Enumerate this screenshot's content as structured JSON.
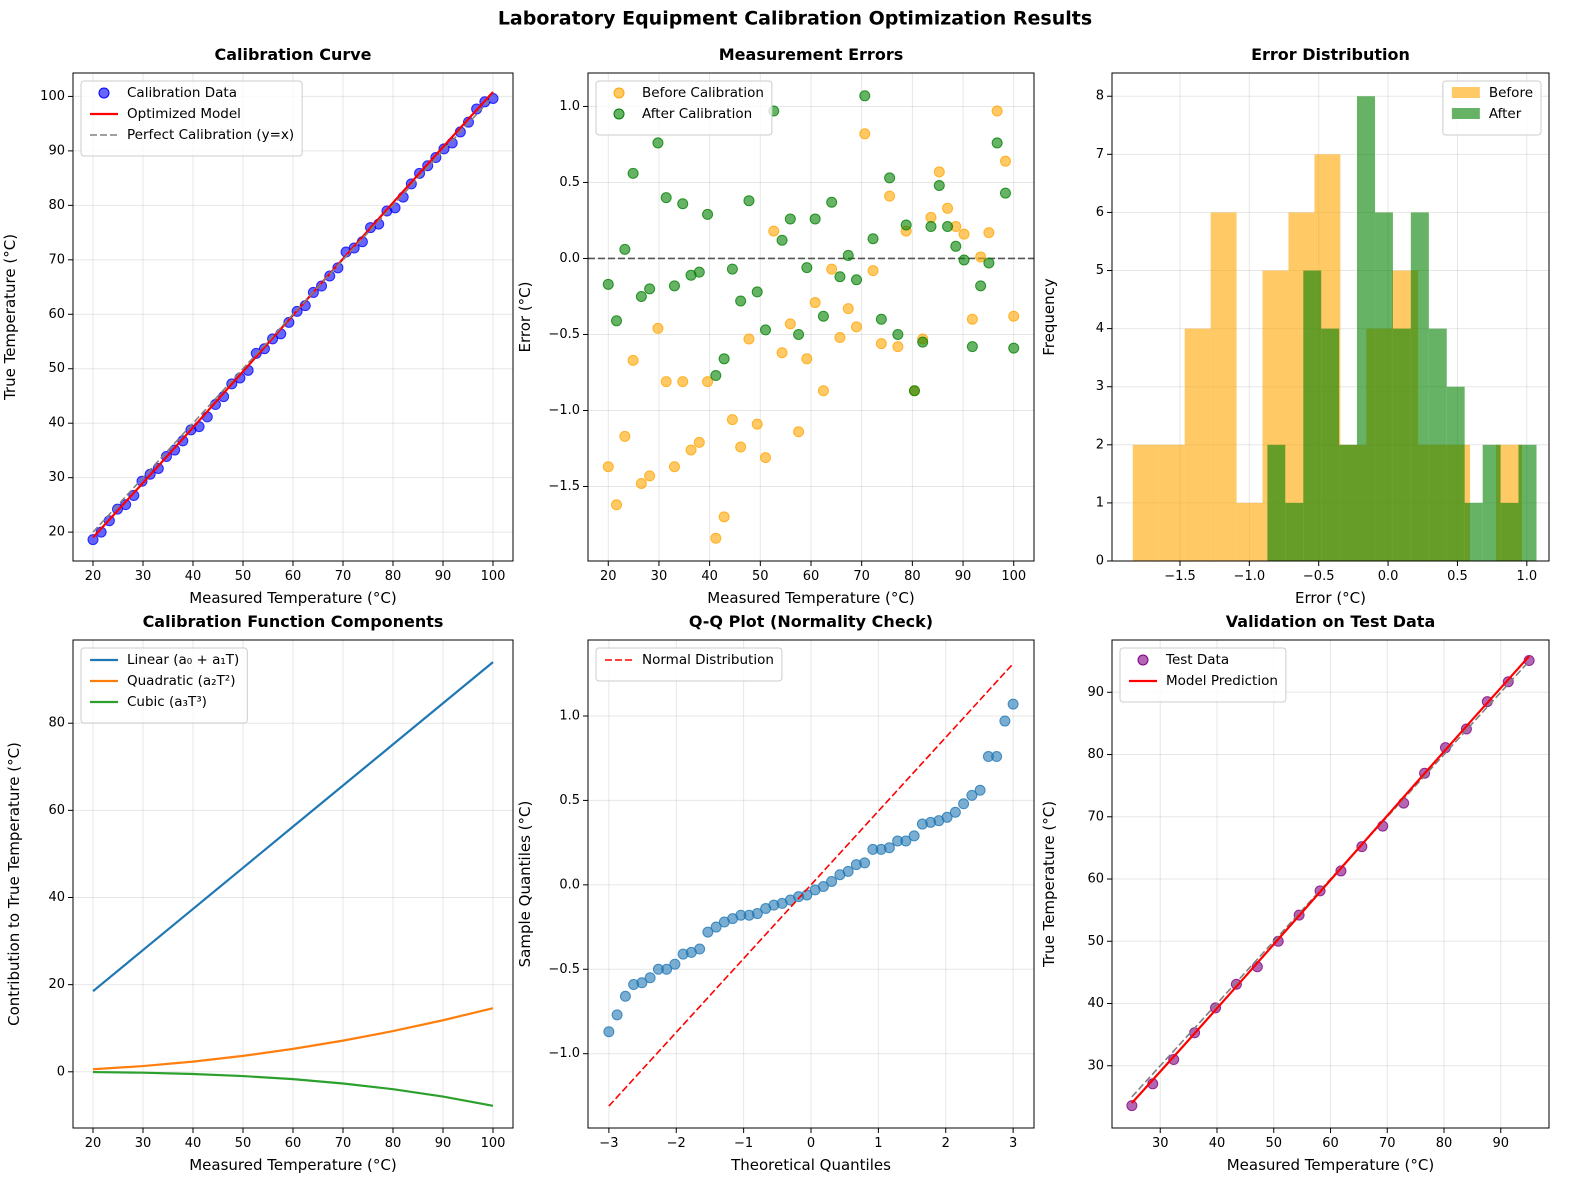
{
  "title": "Laboratory Equipment Calibration Optimization Results",
  "chart_data": [
    {
      "type": "scatter",
      "title": "Calibration Curve",
      "xlabel": "Measured Temperature (°C)",
      "ylabel": "True Temperature (°C)",
      "xlim": [
        16,
        104
      ],
      "ylim": [
        14.7,
        104.3
      ],
      "xticks": [
        20,
        30,
        40,
        50,
        60,
        70,
        80,
        90,
        100
      ],
      "yticks": [
        20,
        30,
        40,
        50,
        60,
        70,
        80,
        90,
        100
      ],
      "grid": true,
      "legend": "upper left",
      "series": [
        {
          "name": "Calibration Data",
          "type": "scatter",
          "color": "blue",
          "alpha": 0.6,
          "x": [
            20,
            21.63,
            23.27,
            24.9,
            26.53,
            28.16,
            29.8,
            31.43,
            33.06,
            34.69,
            36.33,
            37.96,
            39.59,
            41.22,
            42.86,
            44.49,
            46.12,
            47.76,
            49.39,
            51.02,
            52.65,
            54.29,
            55.92,
            57.55,
            59.18,
            60.82,
            62.45,
            64.08,
            65.71,
            67.35,
            68.98,
            70.61,
            72.24,
            73.88,
            75.51,
            77.14,
            78.78,
            80.41,
            82.04,
            83.67,
            85.31,
            86.94,
            88.57,
            90.2,
            91.84,
            93.47,
            95.1,
            96.73,
            98.37,
            100
          ],
          "values": [
            18.63,
            20.01,
            22.1,
            24.23,
            25.05,
            26.73,
            29.34,
            30.62,
            31.69,
            33.88,
            35.07,
            36.75,
            38.78,
            39.38,
            41.16,
            43.43,
            44.88,
            47.23,
            48.3,
            49.71,
            52.83,
            53.67,
            55.49,
            56.41,
            58.52,
            60.53,
            61.58,
            64.01,
            65.19,
            67.02,
            68.53,
            71.43,
            72.16,
            73.32,
            75.92,
            76.56,
            78.96,
            79.54,
            81.51,
            83.94,
            85.88,
            87.27,
            88.78,
            90.36,
            91.44,
            93.48,
            95.27,
            97.7,
            99.01,
            99.62
          ]
        },
        {
          "name": "Optimized Model",
          "type": "line",
          "color": "red",
          "x": [
            20,
            30,
            40,
            50,
            60,
            70,
            80,
            90,
            100
          ],
          "values": [
            19.02,
            29.04,
            39.22,
            49.49,
            59.84,
            70.17,
            80.49,
            90.72,
            100.82
          ]
        },
        {
          "name": "Perfect Calibration (y=x)",
          "type": "line",
          "color": "gray",
          "linestyle": "dashed",
          "x": [
            20,
            100
          ],
          "values": [
            20,
            100
          ]
        }
      ]
    },
    {
      "type": "scatter",
      "title": "Measurement Errors",
      "xlabel": "Measured Temperature (°C)",
      "ylabel": "Error (°C)",
      "xlim": [
        16,
        104
      ],
      "ylim": [
        -1.99,
        1.22
      ],
      "xticks": [
        20,
        30,
        40,
        50,
        60,
        70,
        80,
        90,
        100
      ],
      "yticks": [
        {
          "value": -1.5,
          "label": "−1.5"
        },
        {
          "value": -1,
          "label": "−1.0"
        },
        {
          "value": -0.5,
          "label": "−0.5"
        },
        {
          "value": 0,
          "label": "0.0"
        },
        {
          "value": 0.5,
          "label": "0.5"
        },
        {
          "value": 1,
          "label": "1.0"
        }
      ],
      "grid": true,
      "legend": "upper left",
      "reference_lines": [
        {
          "y": 0,
          "color": "#555555",
          "linestyle": "dashed"
        }
      ],
      "series": [
        {
          "name": "Before Calibration",
          "type": "scatter",
          "color": "orange",
          "alpha": 0.6,
          "x": [
            20,
            21.63,
            23.27,
            24.9,
            26.53,
            28.16,
            29.8,
            31.43,
            33.06,
            34.69,
            36.33,
            37.96,
            39.59,
            41.22,
            42.86,
            44.49,
            46.12,
            47.76,
            49.39,
            51.02,
            52.65,
            54.29,
            55.92,
            57.55,
            59.18,
            60.82,
            62.45,
            64.08,
            65.71,
            67.35,
            68.98,
            70.61,
            72.24,
            73.88,
            75.51,
            77.14,
            78.78,
            80.41,
            82.04,
            83.67,
            85.31,
            86.94,
            88.57,
            90.2,
            91.84,
            93.47,
            95.1,
            96.73,
            98.37,
            100
          ],
          "values": [
            -1.37,
            -1.62,
            -1.17,
            -0.67,
            -1.48,
            -1.43,
            -0.46,
            -0.81,
            -1.37,
            -0.81,
            -1.26,
            -1.21,
            -0.81,
            -1.84,
            -1.7,
            -1.06,
            -1.24,
            -0.53,
            -1.09,
            -1.31,
            0.18,
            -0.62,
            -0.43,
            -1.14,
            -0.66,
            -0.29,
            -0.87,
            -0.07,
            -0.52,
            -0.33,
            -0.45,
            0.82,
            -0.08,
            -0.56,
            0.41,
            -0.58,
            0.18,
            -0.87,
            -0.53,
            0.27,
            0.57,
            0.33,
            0.21,
            0.16,
            -0.4,
            0.01,
            0.17,
            0.97,
            0.64,
            -0.38
          ]
        },
        {
          "name": "After Calibration",
          "type": "scatter",
          "color": "green",
          "alpha": 0.6,
          "x": [
            20,
            21.63,
            23.27,
            24.9,
            26.53,
            28.16,
            29.8,
            31.43,
            33.06,
            34.69,
            36.33,
            37.96,
            39.59,
            41.22,
            42.86,
            44.49,
            46.12,
            47.76,
            49.39,
            51.02,
            52.65,
            54.29,
            55.92,
            57.55,
            59.18,
            60.82,
            62.45,
            64.08,
            65.71,
            67.35,
            68.98,
            70.61,
            72.24,
            73.88,
            75.51,
            77.14,
            78.78,
            80.41,
            82.04,
            83.67,
            85.31,
            86.94,
            88.57,
            90.2,
            91.84,
            93.47,
            95.1,
            96.73,
            98.37,
            100
          ],
          "values": [
            -0.17,
            -0.41,
            0.06,
            0.56,
            -0.25,
            -0.2,
            0.76,
            0.4,
            -0.18,
            0.36,
            -0.11,
            -0.09,
            0.29,
            -0.77,
            -0.66,
            -0.07,
            -0.28,
            0.38,
            -0.22,
            -0.47,
            0.97,
            0.12,
            0.26,
            -0.5,
            -0.06,
            0.26,
            -0.38,
            0.37,
            -0.12,
            0.02,
            -0.14,
            1.07,
            0.13,
            -0.4,
            0.53,
            -0.5,
            0.22,
            -0.87,
            -0.55,
            0.21,
            0.48,
            0.21,
            0.08,
            -0.01,
            -0.58,
            -0.18,
            -0.03,
            0.76,
            0.43,
            -0.59
          ]
        }
      ]
    },
    {
      "type": "histogram",
      "title": "Error Distribution",
      "xlabel": "Error (°C)",
      "ylabel": "Frequency",
      "xlim": [
        -1.99,
        1.16
      ],
      "ylim": [
        0,
        8.4
      ],
      "xticks": [
        {
          "value": -1.5,
          "label": "−1.5"
        },
        {
          "value": -1,
          "label": "−1.0"
        },
        {
          "value": -0.5,
          "label": "−0.5"
        },
        {
          "value": 0,
          "label": "0.0"
        },
        {
          "value": 0.5,
          "label": "0.5"
        },
        {
          "value": 1,
          "label": "1.0"
        }
      ],
      "yticks": [
        0,
        1,
        2,
        3,
        4,
        5,
        6,
        7,
        8
      ],
      "grid": true,
      "legend": "upper right",
      "series": [
        {
          "name": "Before",
          "color": "orange",
          "alpha": 0.6,
          "bins": [
            -1.84,
            -1.653,
            -1.466,
            -1.279,
            -1.092,
            -0.905,
            -0.718,
            -0.531,
            -0.344,
            -0.157,
            0.03,
            0.217,
            0.404,
            0.591,
            0.778,
            0.965
          ],
          "values": [
            2,
            2,
            4,
            6,
            1,
            5,
            6,
            7,
            2,
            4,
            5,
            2,
            2,
            0,
            2
          ]
        },
        {
          "name": "After",
          "color": "green",
          "alpha": 0.6,
          "bins": [
            -0.87,
            -0.741,
            -0.611,
            -0.482,
            -0.353,
            -0.224,
            -0.094,
            0.035,
            0.164,
            0.294,
            0.423,
            0.552,
            0.682,
            0.811,
            0.94,
            1.07
          ],
          "values": [
            2,
            1,
            5,
            4,
            2,
            8,
            6,
            4,
            6,
            4,
            3,
            1,
            2,
            1,
            2
          ]
        }
      ]
    },
    {
      "type": "line",
      "title": "Calibration Function Components",
      "xlabel": "Measured Temperature (°C)",
      "ylabel": "Contribution to True Temperature (°C)",
      "xlim": [
        16,
        104
      ],
      "ylim": [
        -12.9,
        99.1
      ],
      "xticks": [
        20,
        30,
        40,
        50,
        60,
        70,
        80,
        90,
        100
      ],
      "yticks": [
        0,
        20,
        40,
        60,
        80
      ],
      "grid": true,
      "legend": "upper left",
      "series": [
        {
          "name": "Linear (a₀ + a₁T)",
          "type": "line",
          "color": "#1f77b4",
          "x": [
            20,
            30,
            40,
            50,
            60,
            70,
            80,
            90,
            100
          ],
          "values": [
            18.5,
            27.94,
            37.38,
            46.82,
            56.26,
            65.7,
            75.14,
            84.58,
            94.02
          ]
        },
        {
          "name": "Quadratic (a₂T²)",
          "type": "line",
          "color": "#ff7f0e",
          "x": [
            20,
            30,
            40,
            50,
            60,
            70,
            80,
            90,
            100
          ],
          "values": [
            0.58,
            1.31,
            2.34,
            3.65,
            5.26,
            7.15,
            9.34,
            11.83,
            14.6
          ]
        },
        {
          "name": "Cubic (a₃T³)",
          "type": "line",
          "color": "#2ca02c",
          "x": [
            20,
            30,
            40,
            50,
            60,
            70,
            80,
            90,
            100
          ],
          "values": [
            -0.06,
            -0.21,
            -0.5,
            -0.98,
            -1.68,
            -2.68,
            -3.99,
            -5.69,
            -7.8
          ]
        }
      ]
    },
    {
      "type": "scatter",
      "title": "Q-Q Plot (Normality Check)",
      "xlabel": "Theoretical Quantiles",
      "ylabel": "Sample Quantiles (°C)",
      "xlim": [
        -3.31,
        3.31
      ],
      "ylim": [
        -1.44,
        1.45
      ],
      "xticks": [
        {
          "value": -3,
          "label": "−3"
        },
        {
          "value": -2,
          "label": "−2"
        },
        {
          "value": -1,
          "label": "−1"
        },
        0,
        1,
        2,
        3
      ],
      "yticks": [
        {
          "value": -1,
          "label": "−1.0"
        },
        {
          "value": -0.5,
          "label": "−0.5"
        },
        {
          "value": 0,
          "label": "0.0"
        },
        {
          "value": 0.5,
          "label": "0.5"
        },
        {
          "value": 1,
          "label": "1.0"
        }
      ],
      "grid": true,
      "legend": "upper left",
      "series": [
        {
          "type": "scatter",
          "color": "#1f77b4",
          "alpha": 0.6,
          "x": [
            -3,
            -2.878,
            -2.755,
            -2.633,
            -2.51,
            -2.388,
            -2.265,
            -2.143,
            -2.02,
            -1.898,
            -1.776,
            -1.653,
            -1.531,
            -1.408,
            -1.286,
            -1.163,
            -1.041,
            -0.918,
            -0.796,
            -0.673,
            -0.551,
            -0.429,
            -0.306,
            -0.184,
            -0.061,
            0.061,
            0.184,
            0.306,
            0.429,
            0.551,
            0.673,
            0.796,
            0.918,
            1.041,
            1.163,
            1.286,
            1.408,
            1.531,
            1.653,
            1.776,
            1.898,
            2.02,
            2.143,
            2.265,
            2.388,
            2.51,
            2.633,
            2.755,
            2.878,
            3
          ],
          "values": [
            -0.87,
            -0.77,
            -0.66,
            -0.59,
            -0.58,
            -0.55,
            -0.5,
            -0.5,
            -0.47,
            -0.41,
            -0.4,
            -0.38,
            -0.28,
            -0.25,
            -0.22,
            -0.2,
            -0.18,
            -0.18,
            -0.17,
            -0.14,
            -0.12,
            -0.11,
            -0.09,
            -0.07,
            -0.06,
            -0.03,
            -0.01,
            0.02,
            0.06,
            0.08,
            0.12,
            0.13,
            0.21,
            0.21,
            0.22,
            0.26,
            0.26,
            0.29,
            0.36,
            0.37,
            0.38,
            0.4,
            0.43,
            0.48,
            0.53,
            0.56,
            0.76,
            0.76,
            0.97,
            1.07
          ]
        },
        {
          "name": "Normal Distribution",
          "type": "line",
          "color": "red",
          "linestyle": "dashed",
          "x": [
            -3,
            3
          ],
          "values": [
            -1.31,
            1.31
          ]
        }
      ]
    },
    {
      "type": "scatter",
      "title": "Validation on Test Data",
      "xlabel": "Measured Temperature (°C)",
      "ylabel": "True Temperature (°C)",
      "xlim": [
        21.5,
        98.5
      ],
      "ylim": [
        20,
        98.4
      ],
      "xticks": [
        30,
        40,
        50,
        60,
        70,
        80,
        90
      ],
      "yticks": [
        30,
        40,
        50,
        60,
        70,
        80,
        90
      ],
      "grid": true,
      "legend": "upper left",
      "series": [
        {
          "name": "Test Data",
          "type": "scatter",
          "color": "purple",
          "alpha": 0.6,
          "x": [
            25,
            28.68,
            32.37,
            36.05,
            39.74,
            43.42,
            47.11,
            50.79,
            54.47,
            58.16,
            61.84,
            65.53,
            69.21,
            72.89,
            76.58,
            80.26,
            83.95,
            87.63,
            91.32,
            95
          ],
          "values": [
            23.6,
            27.1,
            31,
            35.3,
            39.3,
            43.1,
            45.9,
            50,
            54.2,
            58.1,
            61.3,
            65.2,
            68.5,
            72.2,
            77,
            81.1,
            84.1,
            88.5,
            91.7,
            95.1
          ]
        },
        {
          "type": "line",
          "color": "gray",
          "linestyle": "dashed",
          "x": [
            25,
            95
          ],
          "values": [
            25,
            95
          ]
        },
        {
          "name": "Model Prediction",
          "type": "line",
          "color": "red",
          "x": [
            25,
            35,
            45,
            55,
            65,
            75,
            85,
            95
          ],
          "values": [
            24.01,
            34.11,
            44.35,
            54.66,
            65.01,
            75.34,
            85.62,
            95.79
          ]
        }
      ]
    }
  ]
}
